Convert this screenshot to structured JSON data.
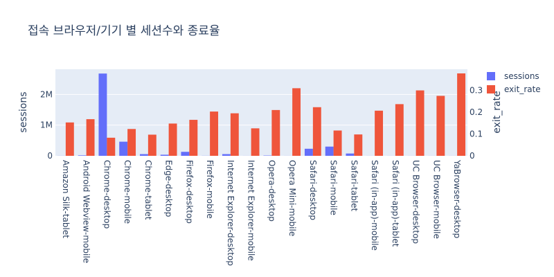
{
  "chart_data": {
    "type": "bar",
    "title": "접속 브라우저/기기 별 세션수와 종료율",
    "xlabel": "",
    "ylabel": "sessions",
    "y2label": "exit_rate",
    "categories": [
      "Amazon Silk-tablet",
      "Android Webview-mobile",
      "Chrome-desktop",
      "Chrome-mobile",
      "Chrome-tablet",
      "Edge-desktop",
      "Firefox-desktop",
      "Firefox-mobile",
      "Internet Explorer-desktop",
      "Internet Explorer-mobile",
      "Opera-desktop",
      "Opera Mini-mobile",
      "Safari-desktop",
      "Safari-mobile",
      "Safari-tablet",
      "Safari (in-app)-mobile",
      "Safari (in-app)-tablet",
      "UC Browser-desktop",
      "UC Browser-mobile",
      "YaBrowser-desktop"
    ],
    "series": [
      {
        "name": "sessions",
        "axis": "y",
        "color": "#636efa",
        "values": [
          2000,
          15000,
          2680000,
          460000,
          55000,
          35000,
          130000,
          3000,
          55000,
          1000,
          10000,
          1000,
          230000,
          300000,
          75000,
          1000,
          1000,
          1000,
          1000,
          1000
        ]
      },
      {
        "name": "exit_rate",
        "axis": "y2",
        "color": "#ef553b",
        "values": [
          0.153,
          0.168,
          0.083,
          0.123,
          0.097,
          0.148,
          0.165,
          0.203,
          0.195,
          0.126,
          0.21,
          0.31,
          0.223,
          0.116,
          0.098,
          0.207,
          0.237,
          0.3,
          0.275,
          0.378
        ]
      }
    ],
    "y_ticks": [
      {
        "value": 0,
        "label": "0"
      },
      {
        "value": 1000000,
        "label": "1M"
      },
      {
        "value": 2000000,
        "label": "2M"
      }
    ],
    "y2_ticks": [
      {
        "value": 0,
        "label": "0"
      },
      {
        "value": 0.1,
        "label": "0.1"
      },
      {
        "value": 0.2,
        "label": "0.2"
      },
      {
        "value": 0.3,
        "label": "0.3"
      }
    ],
    "ylim": [
      0,
      2820000
    ],
    "y2lim": [
      0,
      0.397
    ],
    "grid": true,
    "legend_placement": "top-right",
    "colors": {
      "plot_background": "#e5ecf6",
      "gridline": "#ffffff",
      "text": "#2a3f5f"
    }
  }
}
